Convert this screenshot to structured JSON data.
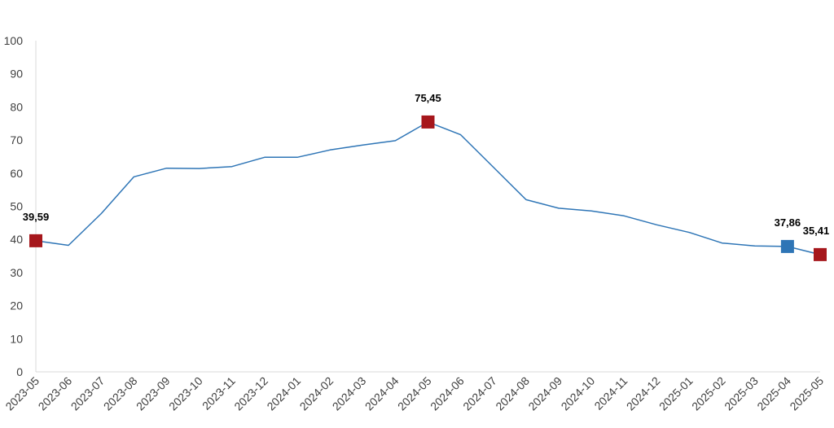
{
  "chart_data": {
    "type": "line",
    "x": [
      "2023-05",
      "2023-06",
      "2023-07",
      "2023-08",
      "2023-09",
      "2023-10",
      "2023-11",
      "2023-12",
      "2024-01",
      "2024-02",
      "2024-03",
      "2024-04",
      "2024-05",
      "2024-06",
      "2024-07",
      "2024-08",
      "2024-09",
      "2024-10",
      "2024-11",
      "2024-12",
      "2025-01",
      "2025-02",
      "2025-03",
      "2025-04",
      "2025-05"
    ],
    "series": [
      {
        "values": [
          39.59,
          38.2,
          47.8,
          58.9,
          61.5,
          61.4,
          62.0,
          64.8,
          64.8,
          67.0,
          68.5,
          69.8,
          75.45,
          71.6,
          61.8,
          52.0,
          49.4,
          48.6,
          47.1,
          44.4,
          42.1,
          38.9,
          38.0,
          37.86,
          35.41
        ],
        "color": "#2E75B6"
      }
    ],
    "ylim": [
      0,
      100
    ],
    "yticks": [
      "0",
      "10",
      "20",
      "30",
      "40",
      "50",
      "60",
      "70",
      "80",
      "90",
      "100"
    ],
    "grid": false,
    "highlights": [
      {
        "index": 0,
        "label": "39,59",
        "color": "#A6171C"
      },
      {
        "index": 12,
        "label": "75,45",
        "color": "#A6171C"
      },
      {
        "index": 23,
        "label": "37,86",
        "color": "#2E75B6"
      },
      {
        "index": 24,
        "label": "35,41",
        "color": "#A6171C"
      }
    ]
  }
}
